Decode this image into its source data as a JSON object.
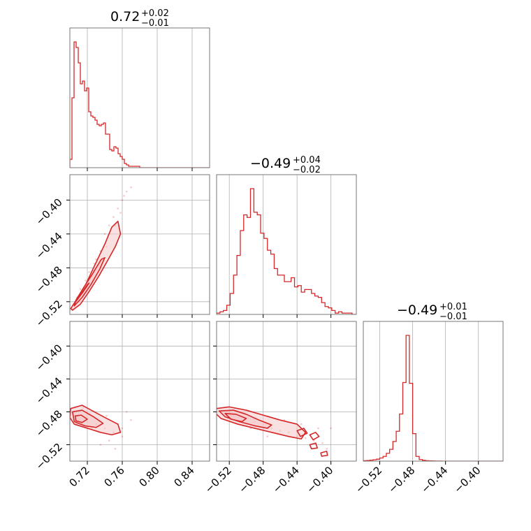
{
  "chart_data": {
    "type": "corner",
    "color": "#d62728",
    "fill_color": "#f4c6c8",
    "grid": true,
    "params": [
      {
        "title": {
          "median": "0.72",
          "plus": "+0.02",
          "minus": "−0.01"
        },
        "range": [
          0.7,
          0.86
        ],
        "ticks": [
          0.72,
          0.76,
          0.8,
          0.84
        ],
        "tick_labels": [
          "0.72",
          "0.76",
          "0.80",
          "0.84"
        ]
      },
      {
        "title": {
          "median": "−0.49",
          "plus": "+0.04",
          "minus": "−0.02"
        },
        "range": [
          -0.535,
          -0.37
        ],
        "ticks": [
          -0.52,
          -0.48,
          -0.44,
          -0.4
        ],
        "tick_labels": [
          "−0.52",
          "−0.48",
          "−0.44",
          "−0.40"
        ]
      },
      {
        "title": {
          "median": "−0.49",
          "plus": "+0.01",
          "minus": "−0.01"
        },
        "range": [
          -0.54,
          -0.37
        ],
        "ticks": [
          -0.52,
          -0.48,
          -0.44,
          -0.4
        ],
        "tick_labels": [
          "−0.52",
          "−0.48",
          "−0.44",
          "−0.40"
        ]
      }
    ],
    "histograms": [
      {
        "param": 0,
        "edges": [
          0.7,
          0.7024,
          0.7048,
          0.7072,
          0.7096,
          0.712,
          0.7144,
          0.7168,
          0.7192,
          0.7216,
          0.724,
          0.7264,
          0.7288,
          0.7312,
          0.7336,
          0.736,
          0.7384,
          0.7408,
          0.7432,
          0.7456,
          0.748,
          0.7504,
          0.7528,
          0.7552,
          0.7576,
          0.76,
          0.7624,
          0.7648,
          0.7672,
          0.7696,
          0.772,
          0.78,
          0.86
        ],
        "counts": [
          6,
          50,
          90,
          86,
          75,
          60,
          62,
          55,
          57,
          40,
          37,
          36,
          34,
          31,
          30,
          31,
          32,
          24,
          24,
          13,
          12,
          15,
          14,
          10,
          8,
          6,
          3,
          2,
          1,
          1,
          1,
          0
        ]
      },
      {
        "param": 1,
        "edges": [
          -0.535,
          -0.531,
          -0.527,
          -0.523,
          -0.519,
          -0.515,
          -0.511,
          -0.507,
          -0.503,
          -0.499,
          -0.495,
          -0.491,
          -0.487,
          -0.483,
          -0.479,
          -0.475,
          -0.471,
          -0.467,
          -0.463,
          -0.459,
          -0.455,
          -0.451,
          -0.447,
          -0.443,
          -0.439,
          -0.435,
          -0.431,
          -0.427,
          -0.423,
          -0.419,
          -0.415,
          -0.411,
          -0.407,
          -0.403,
          -0.399,
          -0.395,
          -0.391,
          -0.387,
          -0.383,
          -0.379,
          -0.375,
          -0.37
        ],
        "counts": [
          1,
          2,
          3,
          7,
          16,
          30,
          45,
          64,
          76,
          74,
          96,
          78,
          76,
          62,
          58,
          49,
          46,
          35,
          30,
          30,
          25,
          25,
          28,
          21,
          22,
          17,
          19,
          19,
          16,
          14,
          13,
          9,
          6,
          5,
          3,
          1,
          2,
          1,
          1,
          1,
          0
        ]
      },
      {
        "param": 2,
        "edges": [
          -0.54,
          -0.536,
          -0.532,
          -0.528,
          -0.524,
          -0.52,
          -0.516,
          -0.512,
          -0.508,
          -0.504,
          -0.5,
          -0.496,
          -0.492,
          -0.488,
          -0.484,
          -0.48,
          -0.476,
          -0.472,
          -0.468,
          -0.464,
          -0.46,
          -0.456,
          -0.452,
          -0.448,
          -0.444,
          -0.44,
          -0.37
        ],
        "counts": [
          0.5,
          0.8,
          1.2,
          1.8,
          2.5,
          4,
          6,
          10,
          15,
          25,
          38,
          60,
          100,
          160,
          99,
          35,
          6,
          2,
          1,
          0.5,
          0.3,
          0.2,
          0.1,
          0.05,
          0.02,
          0
        ]
      }
    ],
    "pairs": [
      {
        "x": 0,
        "y": 1,
        "samples": [
          [
            0.71,
            -0.52
          ],
          [
            0.715,
            -0.51
          ],
          [
            0.72,
            -0.5
          ],
          [
            0.725,
            -0.49
          ],
          [
            0.73,
            -0.47
          ],
          [
            0.735,
            -0.46
          ],
          [
            0.74,
            -0.44
          ],
          [
            0.745,
            -0.43
          ],
          [
            0.75,
            -0.42
          ],
          [
            0.755,
            -0.41
          ],
          [
            0.76,
            -0.4
          ],
          [
            0.765,
            -0.39
          ],
          [
            0.77,
            -0.385
          ],
          [
            0.708,
            -0.515
          ],
          [
            0.712,
            -0.505
          ],
          [
            0.718,
            -0.495
          ],
          [
            0.722,
            -0.485
          ],
          [
            0.728,
            -0.475
          ],
          [
            0.742,
            -0.455
          ],
          [
            0.752,
            -0.43
          ],
          [
            0.758,
            -0.415
          ],
          [
            0.7,
            -0.53
          ],
          [
            0.705,
            -0.525
          ],
          [
            0.762,
            -0.395
          ]
        ],
        "contours": [
          {
            "filled": true,
            "points": [
              [
                0.703,
                -0.53
              ],
              [
                0.712,
                -0.523
              ],
              [
                0.722,
                -0.508
              ],
              [
                0.733,
                -0.49
              ],
              [
                0.744,
                -0.47
              ],
              [
                0.752,
                -0.455
              ],
              [
                0.758,
                -0.44
              ],
              [
                0.755,
                -0.425
              ],
              [
                0.748,
                -0.432
              ],
              [
                0.74,
                -0.452
              ],
              [
                0.728,
                -0.478
              ],
              [
                0.718,
                -0.5
              ],
              [
                0.708,
                -0.517
              ],
              [
                0.701,
                -0.528
              ]
            ]
          },
          {
            "filled": true,
            "points": [
              [
                0.705,
                -0.525
              ],
              [
                0.714,
                -0.515
              ],
              [
                0.724,
                -0.5
              ],
              [
                0.734,
                -0.482
              ],
              [
                0.74,
                -0.468
              ],
              [
                0.736,
                -0.47
              ],
              [
                0.726,
                -0.487
              ],
              [
                0.716,
                -0.503
              ],
              [
                0.707,
                -0.518
              ]
            ]
          },
          {
            "filled": true,
            "points": [
              [
                0.706,
                -0.521
              ],
              [
                0.714,
                -0.51
              ],
              [
                0.722,
                -0.498
              ],
              [
                0.72,
                -0.5
              ],
              [
                0.712,
                -0.512
              ],
              [
                0.707,
                -0.519
              ]
            ]
          }
        ]
      },
      {
        "x": 0,
        "y": 2,
        "samples": [
          [
            0.71,
            -0.49
          ],
          [
            0.72,
            -0.492
          ],
          [
            0.73,
            -0.495
          ],
          [
            0.74,
            -0.5
          ],
          [
            0.75,
            -0.505
          ],
          [
            0.76,
            -0.51
          ],
          [
            0.765,
            -0.48
          ],
          [
            0.77,
            -0.49
          ],
          [
            0.745,
            -0.515
          ],
          [
            0.735,
            -0.52
          ],
          [
            0.705,
            -0.48
          ],
          [
            0.715,
            -0.475
          ],
          [
            0.725,
            -0.5
          ],
          [
            0.755,
            -0.495
          ],
          [
            0.742,
            -0.485
          ],
          [
            0.752,
            -0.525
          ],
          [
            0.76,
            -0.5
          ],
          [
            0.708,
            -0.495
          ]
        ],
        "contours": [
          {
            "filled": true,
            "points": [
              [
                0.701,
                -0.476
              ],
              [
                0.714,
                -0.472
              ],
              [
                0.728,
                -0.48
              ],
              [
                0.742,
                -0.488
              ],
              [
                0.755,
                -0.495
              ],
              [
                0.758,
                -0.505
              ],
              [
                0.748,
                -0.508
              ],
              [
                0.735,
                -0.505
              ],
              [
                0.72,
                -0.5
              ],
              [
                0.705,
                -0.495
              ],
              [
                0.7,
                -0.487
              ]
            ]
          },
          {
            "filled": true,
            "points": [
              [
                0.703,
                -0.48
              ],
              [
                0.714,
                -0.478
              ],
              [
                0.727,
                -0.486
              ],
              [
                0.738,
                -0.494
              ],
              [
                0.73,
                -0.499
              ],
              [
                0.717,
                -0.497
              ],
              [
                0.705,
                -0.492
              ]
            ]
          },
          {
            "filled": true,
            "points": [
              [
                0.706,
                -0.485
              ],
              [
                0.713,
                -0.484
              ],
              [
                0.72,
                -0.489
              ],
              [
                0.714,
                -0.493
              ],
              [
                0.707,
                -0.491
              ]
            ]
          }
        ]
      },
      {
        "x": 1,
        "y": 2,
        "samples": [
          [
            -0.52,
            -0.48
          ],
          [
            -0.51,
            -0.485
          ],
          [
            -0.5,
            -0.49
          ],
          [
            -0.49,
            -0.492
          ],
          [
            -0.48,
            -0.495
          ],
          [
            -0.47,
            -0.5
          ],
          [
            -0.46,
            -0.503
          ],
          [
            -0.45,
            -0.505
          ],
          [
            -0.44,
            -0.51
          ],
          [
            -0.43,
            -0.512
          ],
          [
            -0.42,
            -0.515
          ],
          [
            -0.41,
            -0.518
          ],
          [
            -0.4,
            -0.5
          ],
          [
            -0.405,
            -0.525
          ],
          [
            -0.415,
            -0.5
          ],
          [
            -0.435,
            -0.495
          ],
          [
            -0.455,
            -0.49
          ],
          [
            -0.475,
            -0.51
          ],
          [
            -0.495,
            -0.5
          ]
        ],
        "contours": [
          {
            "filled": true,
            "points": [
              [
                -0.535,
                -0.476
              ],
              [
                -0.52,
                -0.474
              ],
              [
                -0.5,
                -0.478
              ],
              [
                -0.48,
                -0.484
              ],
              [
                -0.46,
                -0.49
              ],
              [
                -0.44,
                -0.495
              ],
              [
                -0.43,
                -0.505
              ],
              [
                -0.435,
                -0.513
              ],
              [
                -0.45,
                -0.51
              ],
              [
                -0.47,
                -0.505
              ],
              [
                -0.49,
                -0.5
              ],
              [
                -0.51,
                -0.495
              ],
              [
                -0.53,
                -0.488
              ],
              [
                -0.536,
                -0.482
              ]
            ]
          },
          {
            "filled": true,
            "points": [
              [
                -0.532,
                -0.479
              ],
              [
                -0.515,
                -0.478
              ],
              [
                -0.5,
                -0.483
              ],
              [
                -0.485,
                -0.49
              ],
              [
                -0.47,
                -0.496
              ],
              [
                -0.475,
                -0.5
              ],
              [
                -0.49,
                -0.497
              ],
              [
                -0.508,
                -0.492
              ],
              [
                -0.525,
                -0.486
              ]
            ]
          },
          {
            "filled": true,
            "points": [
              [
                -0.525,
                -0.482
              ],
              [
                -0.512,
                -0.483
              ],
              [
                -0.5,
                -0.488
              ],
              [
                -0.505,
                -0.492
              ],
              [
                -0.518,
                -0.489
              ]
            ]
          },
          {
            "filled": false,
            "points": [
              [
                -0.44,
                -0.503
              ],
              [
                -0.432,
                -0.5
              ],
              [
                -0.428,
                -0.506
              ],
              [
                -0.436,
                -0.51
              ]
            ]
          },
          {
            "filled": false,
            "points": [
              [
                -0.425,
                -0.508
              ],
              [
                -0.418,
                -0.505
              ],
              [
                -0.414,
                -0.51
              ],
              [
                -0.421,
                -0.514
              ]
            ]
          },
          {
            "filled": false,
            "points": [
              [
                -0.425,
                -0.52
              ],
              [
                -0.418,
                -0.518
              ],
              [
                -0.416,
                -0.524
              ],
              [
                -0.423,
                -0.525
              ]
            ]
          },
          {
            "filled": false,
            "points": [
              [
                -0.412,
                -0.53
              ],
              [
                -0.405,
                -0.528
              ],
              [
                -0.404,
                -0.533
              ],
              [
                -0.411,
                -0.534
              ]
            ]
          }
        ]
      }
    ]
  }
}
